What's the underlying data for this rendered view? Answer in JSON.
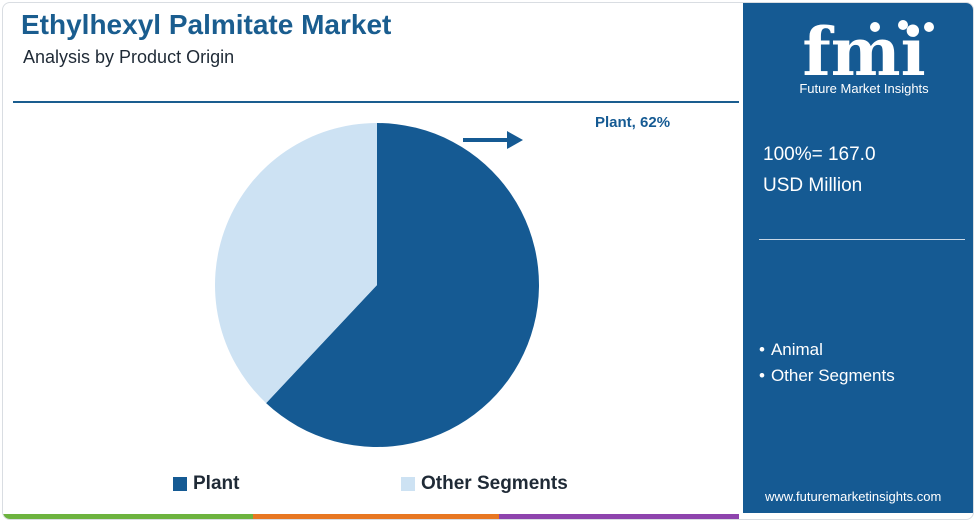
{
  "header": {
    "title": "Ethylhexyl Palmitate Market",
    "subtitle": "Analysis by Product Origin"
  },
  "chart_data": {
    "type": "pie",
    "categories": [
      "Plant",
      "Other Segments"
    ],
    "values": [
      62,
      38
    ],
    "colors": [
      "#155a93",
      "#cde2f3"
    ],
    "annotations": [
      {
        "label": "Plant, 62%",
        "target": "Plant"
      }
    ],
    "legend_position": "bottom"
  },
  "legend": {
    "items": [
      {
        "label": "Plant",
        "color": "#155a93"
      },
      {
        "label": "Other Segments",
        "color": "#cde2f3"
      }
    ]
  },
  "sidebar": {
    "logo_text": "fmi",
    "logo_tagline": "Future Market Insights",
    "total_line1": "100%= 167.0",
    "total_line2": "USD Million",
    "segments": [
      "Animal",
      "Other Segments"
    ],
    "website": "www.futuremarketinsights.com"
  },
  "colors": {
    "brand_blue": "#155a93",
    "light_blue": "#cde2f3",
    "footer_green": "#6db33f",
    "footer_orange": "#e87722",
    "footer_purple": "#8e44ad"
  }
}
